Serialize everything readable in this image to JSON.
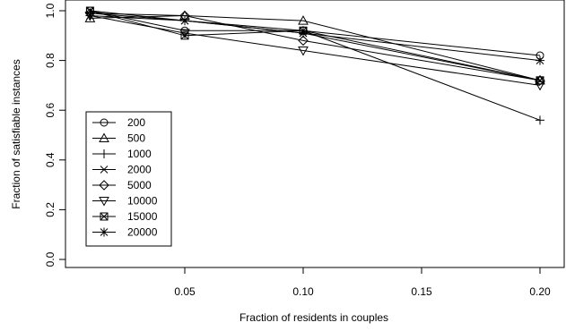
{
  "chart_data": {
    "type": "line",
    "title": "",
    "xlabel": "Fraction of residents in couples",
    "ylabel": "Fraction of satisfiable instances",
    "xlim": [
      0.0,
      0.2
    ],
    "ylim": [
      0.0,
      1.0
    ],
    "x_ticks": [
      0.05,
      0.1,
      0.15,
      0.2
    ],
    "x_tick_labels": [
      "0.05",
      "0.10",
      "0.15",
      "0.20"
    ],
    "y_ticks": [
      0.0,
      0.2,
      0.4,
      0.6,
      0.8,
      1.0
    ],
    "y_tick_labels": [
      "0.0",
      "0.2",
      "0.4",
      "0.6",
      "0.8",
      "1.0"
    ],
    "grid": false,
    "legend_position": "bottom-left",
    "x": [
      0.01,
      0.05,
      0.1,
      0.2
    ],
    "series": [
      {
        "name": "200",
        "marker": "circle",
        "values": [
          1.0,
          0.92,
          0.92,
          0.82
        ]
      },
      {
        "name": "500",
        "marker": "triangle-up",
        "values": [
          0.97,
          0.98,
          0.96,
          0.72
        ]
      },
      {
        "name": "1000",
        "marker": "plus",
        "values": [
          0.99,
          0.96,
          0.92,
          0.56
        ]
      },
      {
        "name": "2000",
        "marker": "x",
        "values": [
          1.0,
          0.96,
          0.91,
          0.72
        ]
      },
      {
        "name": "5000",
        "marker": "diamond",
        "values": [
          0.99,
          0.98,
          0.88,
          0.72
        ]
      },
      {
        "name": "10000",
        "marker": "triangle-down",
        "values": [
          0.98,
          0.91,
          0.84,
          0.7
        ]
      },
      {
        "name": "15000",
        "marker": "boxed-x",
        "values": [
          1.0,
          0.9,
          0.92,
          0.72
        ]
      },
      {
        "name": "20000",
        "marker": "asterisk",
        "values": [
          0.98,
          0.96,
          0.91,
          0.8
        ]
      }
    ]
  }
}
